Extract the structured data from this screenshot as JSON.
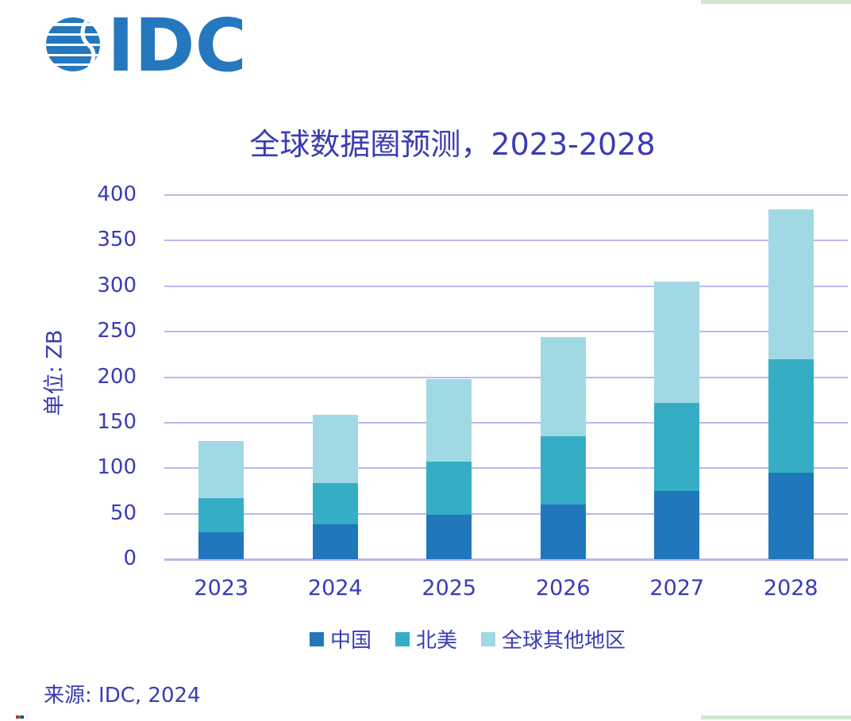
{
  "logo": {
    "brand": "IDC",
    "color": "#2577BE"
  },
  "title": "全球数据圈预测，2023-2028",
  "y_axis": {
    "title": "单位: ZB",
    "ticks": [
      400,
      350,
      300,
      250,
      200,
      150,
      100,
      50,
      0
    ]
  },
  "x_axis": {
    "labels": [
      "2023",
      "2024",
      "2025",
      "2026",
      "2027",
      "2028"
    ]
  },
  "legend": {
    "labels": [
      "中国",
      "北美",
      "全球其他地区"
    ]
  },
  "source": "来源: IDC, 2024",
  "colors": {
    "text": "#3B3BB4",
    "gridline": "#B9B9F0",
    "accent_green": "#CEE7CD",
    "china": "#2177BC",
    "north_america": "#35ADC5",
    "rest_of_world": "#A0D9E3"
  },
  "chart_data": {
    "type": "bar",
    "stacked": true,
    "title": "全球数据圈预测，2023-2028",
    "ylabel": "单位: ZB",
    "ylim": [
      0,
      400
    ],
    "grid": true,
    "gridline_interval": 50,
    "legend_position": "bottom",
    "categories": [
      "2023",
      "2024",
      "2025",
      "2026",
      "2027",
      "2028"
    ],
    "series": [
      {
        "name": "中国",
        "color": "#2177BC",
        "values": [
          30,
          38,
          49,
          60,
          75,
          95
        ]
      },
      {
        "name": "北美",
        "color": "#35ADC5",
        "values": [
          37,
          46,
          58,
          75,
          97,
          125
        ]
      },
      {
        "name": "全球其他地区",
        "color": "#A0D9E3",
        "values": [
          63,
          75,
          91,
          109,
          133,
          164
        ]
      }
    ]
  }
}
